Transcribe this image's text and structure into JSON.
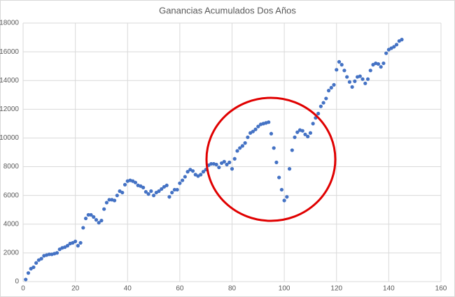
{
  "chart_data": {
    "type": "scatter",
    "title": "Ganancias Acumulados Dos Años",
    "x": [
      1,
      2,
      3,
      4,
      5,
      6,
      7,
      8,
      9,
      10,
      11,
      12,
      13,
      14,
      15,
      16,
      17,
      18,
      19,
      20,
      21,
      22,
      23,
      24,
      25,
      26,
      27,
      28,
      29,
      30,
      31,
      32,
      33,
      34,
      35,
      36,
      37,
      38,
      39,
      40,
      41,
      42,
      43,
      44,
      45,
      46,
      47,
      48,
      49,
      50,
      51,
      52,
      53,
      54,
      55,
      56,
      57,
      58,
      59,
      60,
      61,
      62,
      63,
      64,
      65,
      66,
      67,
      68,
      69,
      70,
      71,
      72,
      73,
      74,
      75,
      76,
      77,
      78,
      79,
      80,
      81,
      82,
      83,
      84,
      85,
      86,
      87,
      88,
      89,
      90,
      91,
      92,
      93,
      94,
      95,
      96,
      97,
      98,
      99,
      100,
      101,
      102,
      103,
      104,
      105,
      106,
      107,
      108,
      109,
      110,
      111,
      112,
      113,
      114,
      115,
      116,
      117,
      118,
      119,
      120,
      121,
      122,
      123,
      124,
      125,
      126,
      127,
      128,
      129,
      130,
      131,
      132,
      133,
      134,
      135,
      136,
      137,
      138,
      139,
      140,
      141,
      142,
      143,
      144,
      145
    ],
    "series": [
      {
        "name": "Ganancias",
        "color": "#4472c4",
        "values": [
          150,
          600,
          900,
          1000,
          1300,
          1500,
          1600,
          1800,
          1850,
          1900,
          1900,
          1950,
          2000,
          2250,
          2350,
          2400,
          2500,
          2650,
          2700,
          2800,
          2500,
          2700,
          3750,
          4400,
          4650,
          4650,
          4500,
          4300,
          4100,
          4250,
          5050,
          5500,
          5700,
          5700,
          5650,
          6000,
          6300,
          6200,
          6750,
          7000,
          7050,
          7000,
          6900,
          6700,
          6650,
          6550,
          6250,
          6100,
          6300,
          6000,
          6200,
          6300,
          6450,
          6600,
          6700,
          5900,
          6200,
          6400,
          6400,
          6850,
          7050,
          7300,
          7650,
          7800,
          7700,
          7450,
          7350,
          7450,
          7650,
          7800,
          8100,
          8200,
          8200,
          8150,
          7950,
          8250,
          8350,
          8150,
          8300,
          7850,
          8550,
          9100,
          9300,
          9450,
          9650,
          10050,
          10350,
          10450,
          10600,
          10800,
          10950,
          11000,
          11050,
          11100,
          10300,
          9300,
          8300,
          7250,
          6400,
          5650,
          5900,
          7850,
          9150,
          10050,
          10400,
          10550,
          10500,
          10250,
          10100,
          10350,
          11000,
          11400,
          11700,
          12200,
          12450,
          12750,
          13300,
          13500,
          13700,
          14750,
          15300,
          15100,
          14700,
          14250,
          13900,
          13550,
          13950,
          14250,
          14300,
          14100,
          13800,
          14100,
          14700,
          15100,
          15200,
          15150,
          14950,
          15200,
          15900,
          16150,
          16250,
          16350,
          16500,
          16750,
          16850
        ]
      }
    ],
    "xlim": [
      0,
      160
    ],
    "xticks": [
      0,
      20,
      40,
      60,
      80,
      100,
      120,
      140,
      160
    ],
    "ylim": [
      0,
      18000
    ],
    "yticks": [
      0,
      2000,
      4000,
      6000,
      8000,
      10000,
      12000,
      14000,
      16000,
      18000
    ],
    "grid": true
  }
}
